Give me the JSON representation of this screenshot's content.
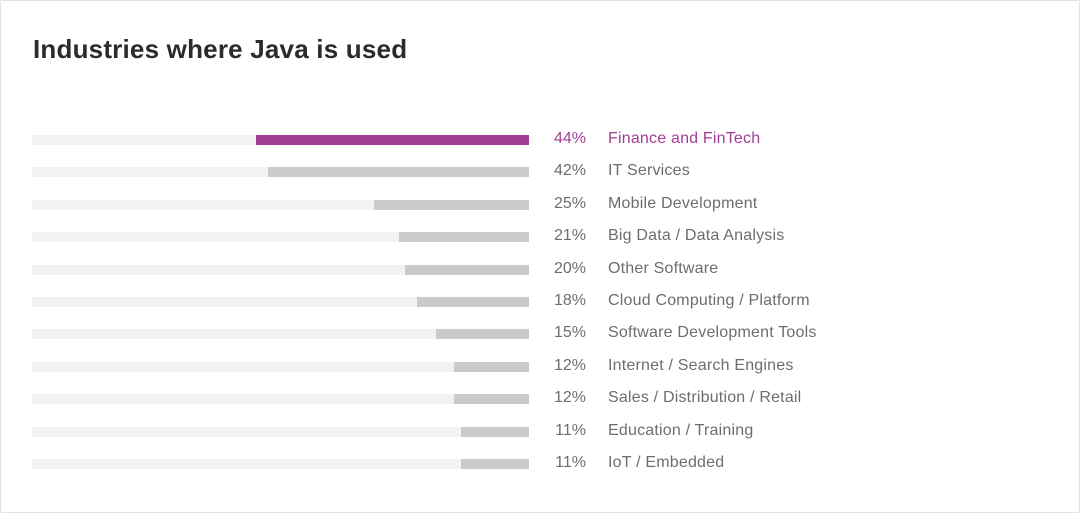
{
  "chart_data": {
    "type": "bar",
    "orientation": "horizontal",
    "title": "Industries where Java is used",
    "categories": [
      "Finance and FinTech",
      "IT Services",
      "Mobile Development",
      "Big Data / Data Analysis",
      "Other Software",
      "Cloud Computing / Platform",
      "Software Development Tools",
      "Internet / Search Engines",
      "Sales / Distribution / Retail",
      "Education / Training",
      "IoT / Embedded"
    ],
    "values": [
      44,
      42,
      25,
      21,
      20,
      18,
      15,
      12,
      12,
      11,
      11
    ],
    "value_labels": [
      "44%",
      "42%",
      "25%",
      "21%",
      "20%",
      "18%",
      "15%",
      "12%",
      "12%",
      "11%",
      "11%"
    ],
    "xlim": [
      0,
      80
    ],
    "highlight_index": 0,
    "grid": false,
    "colors": {
      "highlight": "#a23d96",
      "bar": "#cacaca",
      "track": "#f2f2f2",
      "text": "#6d6d6d"
    }
  }
}
